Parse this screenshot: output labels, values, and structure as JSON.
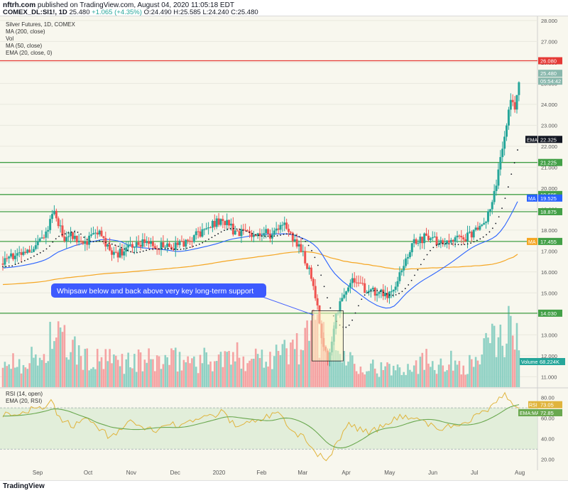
{
  "header": {
    "site": "nftrh.com",
    "published_text": "published on TradingView.com, August 04, 2020 11:05:18 EDT",
    "symbol": "COMEX_DL:SI1!, 1D",
    "price": "25.480",
    "change": "+1.065 (+4.35%)",
    "ohlc": "O:24.490 H:25.585 L:24.240 C:25.480"
  },
  "legend": {
    "title": "Silver Futures, 1D, COMEX",
    "ma200": "MA (200, close)",
    "vol": "Vol",
    "ma50": "MA (50, close)",
    "ema20": "EMA (20, close, 0)"
  },
  "rsi_legend": {
    "rsi": "RSI (14, open)",
    "ema": "EMA (20, RSI)"
  },
  "annotation": "Whipsaw below and back above very key long-term support",
  "footer": {
    "logo": "TradingView"
  },
  "colors": {
    "up": "#26a69a",
    "down": "#ef5350",
    "vol_up": "#8fd1c4",
    "vol_down": "#f5a3a3",
    "ma50": "#2962ff",
    "ma200": "#f5a623",
    "ema": "#131722",
    "support": "#43a047",
    "resistance": "#e53935",
    "rsi": "#e0b43c",
    "rsi_ema": "#6aa84f",
    "annotation_bg": "#3d5afe"
  },
  "chart_data": {
    "type": "candlestick",
    "title": "Silver Futures, 1D, COMEX",
    "y_range": [
      10.5,
      28.2
    ],
    "y_ticks": [
      "28.000",
      "27.000",
      "26.000",
      "25.000",
      "24.000",
      "23.000",
      "22.000",
      "21.000",
      "20.000",
      "19.000",
      "18.000",
      "17.000",
      "16.000",
      "15.000",
      "14.000",
      "13.000",
      "12.000",
      "11.000"
    ],
    "x_labels": [
      "Sep",
      "Oct",
      "Nov",
      "Dec",
      "2020",
      "Feb",
      "Mar",
      "Apr",
      "May",
      "Jun",
      "Jul",
      "Aug"
    ],
    "price_path": [
      [
        0,
        16.4
      ],
      [
        12,
        17.0
      ],
      [
        20,
        17.1
      ],
      [
        28,
        17.5
      ],
      [
        32,
        18.0
      ],
      [
        35,
        19.0
      ],
      [
        40,
        18.2
      ],
      [
        44,
        17.6
      ],
      [
        48,
        17.8
      ],
      [
        55,
        17.4
      ],
      [
        60,
        17.5
      ],
      [
        68,
        17.9
      ],
      [
        75,
        17.0
      ],
      [
        82,
        16.9
      ],
      [
        90,
        17.2
      ],
      [
        100,
        17.4
      ],
      [
        108,
        17.1
      ],
      [
        115,
        17.3
      ],
      [
        122,
        17.2
      ],
      [
        130,
        17.5
      ],
      [
        140,
        17.9
      ],
      [
        155,
        18.5
      ],
      [
        165,
        17.8
      ],
      [
        178,
        17.9
      ],
      [
        190,
        17.8
      ],
      [
        198,
        18.3
      ],
      [
        205,
        17.6
      ],
      [
        212,
        16.8
      ],
      [
        218,
        15.6
      ],
      [
        222,
        14.4
      ],
      [
        226,
        12.3
      ],
      [
        230,
        11.9
      ],
      [
        235,
        13.9
      ],
      [
        240,
        14.8
      ],
      [
        248,
        15.7
      ],
      [
        256,
        15.1
      ],
      [
        264,
        15.0
      ],
      [
        272,
        14.9
      ],
      [
        278,
        15.5
      ],
      [
        283,
        16.3
      ],
      [
        290,
        17.4
      ],
      [
        300,
        17.7
      ],
      [
        310,
        17.3
      ],
      [
        320,
        17.5
      ],
      [
        330,
        17.8
      ],
      [
        338,
        18.2
      ],
      [
        344,
        19.0
      ],
      [
        348,
        20.1
      ],
      [
        352,
        22.0
      ],
      [
        356,
        23.2
      ],
      [
        358,
        24.4
      ],
      [
        361,
        23.6
      ],
      [
        363,
        24.9
      ],
      [
        365,
        25.48
      ]
    ],
    "volume_profile": [
      [
        0,
        1.3
      ],
      [
        30,
        1.6
      ],
      [
        34,
        2.9
      ],
      [
        60,
        1.4
      ],
      [
        100,
        1.4
      ],
      [
        150,
        1.5
      ],
      [
        200,
        1.9
      ],
      [
        215,
        2.6
      ],
      [
        222,
        3.3
      ],
      [
        228,
        2.7
      ],
      [
        240,
        1.7
      ],
      [
        270,
        0.9
      ],
      [
        300,
        1.5
      ],
      [
        330,
        1.2
      ],
      [
        345,
        2.4
      ],
      [
        358,
        3.2
      ],
      [
        362,
        2.5
      ],
      [
        365,
        1.8
      ]
    ],
    "volume_range": [
      0,
      5.0
    ],
    "levels": [
      {
        "name": "resistance",
        "value": 26.08,
        "label": "26.080"
      },
      {
        "name": "support-21",
        "value": 21.225,
        "label": "21.225"
      },
      {
        "name": "support-19-7",
        "value": 19.695,
        "label": "19.695"
      },
      {
        "name": "support-18-9",
        "value": 18.875,
        "label": "18.875"
      },
      {
        "name": "support-17-5",
        "value": 17.455,
        "label": "17.455"
      },
      {
        "name": "support-14",
        "value": 14.03,
        "label": "14.030"
      }
    ],
    "value_tags": {
      "price": "25.480",
      "countdown": "05:54:42",
      "ema_tag": "EMA",
      "ema_value": "22.325",
      "ma_tag": "MA",
      "ma_value": "19.525",
      "ma200_tag": "MA",
      "volume_tag": "Volume",
      "volume_value": "68.224K"
    },
    "rsi": {
      "y_range": [
        15,
        88
      ],
      "ticks": [
        "80.00",
        "60.00",
        "40.00",
        "20.00"
      ],
      "band": [
        30,
        70
      ],
      "rsi_tag": "RSI",
      "rsi_value": "73.05",
      "ema_tag": "EMA:MA",
      "ema_value": "72.85",
      "path": [
        [
          0,
          62
        ],
        [
          15,
          66
        ],
        [
          30,
          72
        ],
        [
          34,
          76
        ],
        [
          40,
          60
        ],
        [
          50,
          52
        ],
        [
          60,
          58
        ],
        [
          75,
          42
        ],
        [
          90,
          55
        ],
        [
          105,
          48
        ],
        [
          120,
          53
        ],
        [
          140,
          60
        ],
        [
          155,
          66
        ],
        [
          165,
          52
        ],
        [
          180,
          60
        ],
        [
          195,
          64
        ],
        [
          205,
          48
        ],
        [
          215,
          38
        ],
        [
          222,
          25
        ],
        [
          228,
          18
        ],
        [
          235,
          35
        ],
        [
          245,
          55
        ],
        [
          255,
          46
        ],
        [
          265,
          50
        ],
        [
          280,
          62
        ],
        [
          295,
          58
        ],
        [
          310,
          50
        ],
        [
          325,
          56
        ],
        [
          338,
          64
        ],
        [
          348,
          76
        ],
        [
          355,
          84
        ],
        [
          360,
          72
        ],
        [
          365,
          70
        ]
      ]
    }
  }
}
